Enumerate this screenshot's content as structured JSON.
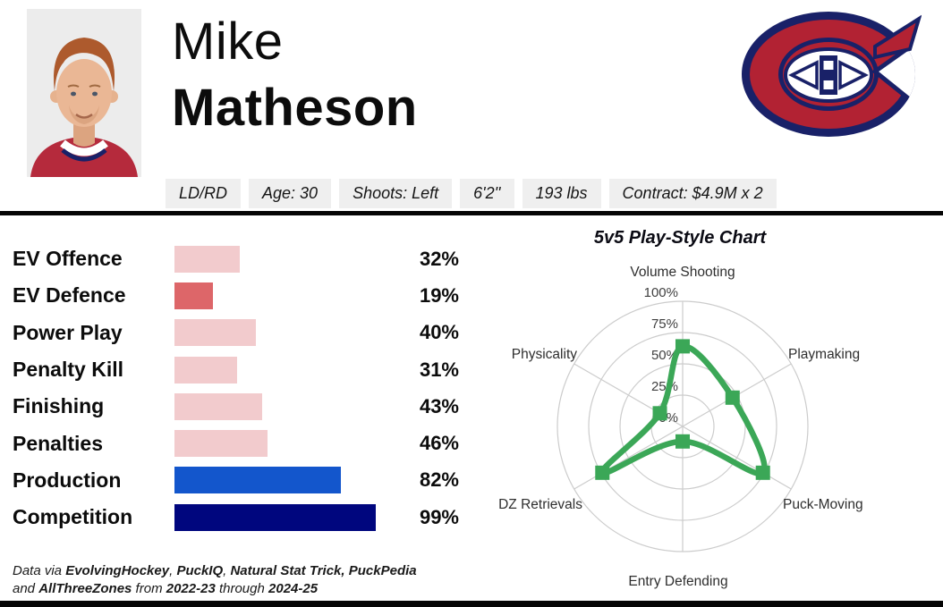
{
  "player": {
    "first_name": "Mike",
    "last_name": "Matheson"
  },
  "team": {
    "name": "Montreal Canadiens",
    "logo_red": "#B22233",
    "logo_navy": "#192168"
  },
  "badges": [
    "LD/RD",
    "Age: 30",
    "Shoots: Left",
    "6'2''",
    "193 lbs",
    "Contract: $4.9M x 2"
  ],
  "chart_data": [
    {
      "type": "bar",
      "orientation": "horizontal",
      "title": "Percentile bars",
      "categories": [
        "EV Offence",
        "EV Defence",
        "Power Play",
        "Penalty Kill",
        "Finishing",
        "Penalties",
        "Production",
        "Competition"
      ],
      "values": [
        32,
        19,
        40,
        31,
        43,
        46,
        82,
        99
      ],
      "value_labels": [
        "32%",
        "19%",
        "40%",
        "31%",
        "43%",
        "46%",
        "82%",
        "99%"
      ],
      "bar_colors": [
        "#F2CBCD",
        "#DD6669",
        "#F2CBCD",
        "#F2CBCD",
        "#F2CBCD",
        "#F2CBCD",
        "#1356CC",
        "#00067E"
      ],
      "xlim": [
        0,
        100
      ],
      "grid": false
    },
    {
      "type": "radar",
      "title": "5v5 Play-Style Chart",
      "categories": [
        "Volume Shooting",
        "Playmaking",
        "Puck-Moving",
        "Entry Defending",
        "DZ Retrievals",
        "Physicality"
      ],
      "values": [
        64,
        46,
        74,
        12,
        74,
        21
      ],
      "tick_percents": [
        0,
        25,
        50,
        75,
        100
      ],
      "tick_labels": [
        "0%",
        "25%",
        "50%",
        "75%",
        "100%"
      ],
      "rlim": [
        0,
        100
      ],
      "axes_order": "clockwise-from-top",
      "line_color": "#3BA757",
      "grid_color": "#CCCCCC",
      "smooth": true,
      "marker": "square"
    }
  ],
  "footer": {
    "lines": [
      [
        {
          "text": "Data via ",
          "bold": false
        },
        {
          "text": "EvolvingHockey",
          "bold": true
        },
        {
          "text": ", ",
          "bold": false
        },
        {
          "text": "PuckIQ",
          "bold": true
        },
        {
          "text": ", ",
          "bold": false
        },
        {
          "text": "Natural Stat Trick,",
          "bold": true
        },
        {
          "text": " ",
          "bold": false
        },
        {
          "text": "PuckPedia",
          "bold": true
        }
      ],
      [
        {
          "text": "and ",
          "bold": false
        },
        {
          "text": "AllThreeZones",
          "bold": true
        },
        {
          "text": " from ",
          "bold": false
        },
        {
          "text": "2022-23",
          "bold": true
        },
        {
          "text": " through ",
          "bold": false
        },
        {
          "text": "2024-25",
          "bold": true
        }
      ]
    ]
  },
  "colors": {
    "divider": "#050505",
    "badge_bg": "#EFEFEF",
    "accent_green": "#3BA757",
    "bar_pink": "#F2CBCD",
    "bar_red": "#DD6669",
    "bar_blue": "#1356CC",
    "bar_navy": "#00067E"
  }
}
